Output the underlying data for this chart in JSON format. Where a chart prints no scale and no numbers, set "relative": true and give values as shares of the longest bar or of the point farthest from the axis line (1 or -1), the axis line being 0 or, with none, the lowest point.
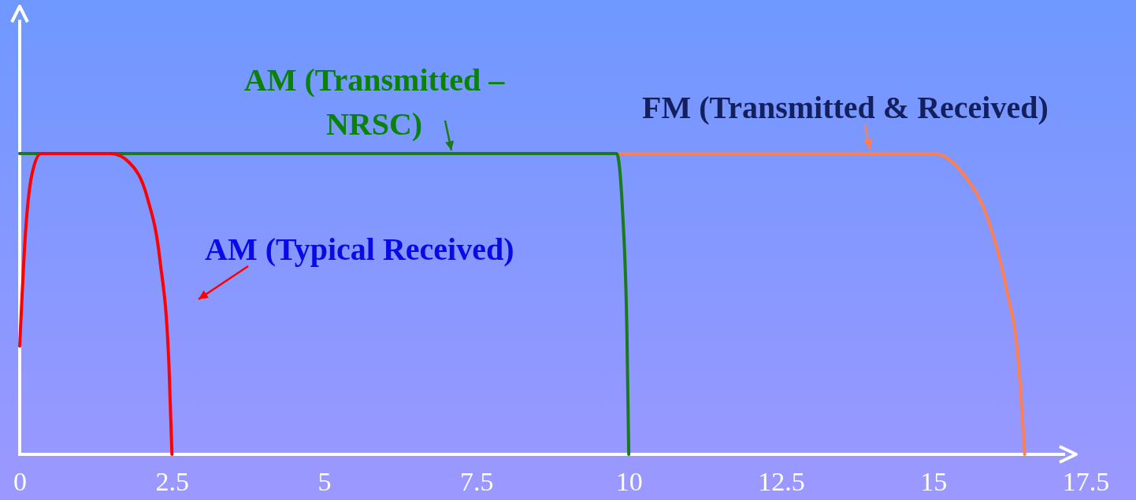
{
  "chart_data": {
    "type": "line",
    "relative": true,
    "xlim": [
      0,
      17.5
    ],
    "xticks": [
      0,
      2.5,
      5,
      7.5,
      10,
      12.5,
      15,
      17.5
    ],
    "grid": false,
    "marker": "none",
    "line_style": "solid",
    "series": [
      {
        "name": "AM (Typical Received)",
        "color": "#ff0000",
        "x": [
          0,
          0.1,
          0.2,
          0.35,
          1.5,
          1.8,
          2.1,
          2.3,
          2.45,
          2.5
        ],
        "values": [
          0.36,
          0.75,
          0.93,
          1,
          1,
          0.97,
          0.85,
          0.65,
          0.3,
          0
        ]
      },
      {
        "name": "AM (Transmitted – NRSC)",
        "color": "#1a7a1a",
        "x": [
          0,
          9.8,
          9.9,
          9.97,
          10
        ],
        "values": [
          1,
          1,
          0.8,
          0.4,
          0
        ]
      },
      {
        "name": "FM (Transmitted & Received)",
        "color": "#ff7f50",
        "x": [
          0,
          15,
          15.5,
          15.9,
          16.2,
          16.4,
          16.5
        ],
        "values": [
          1,
          1,
          0.93,
          0.78,
          0.55,
          0.3,
          0
        ]
      }
    ]
  }
}
